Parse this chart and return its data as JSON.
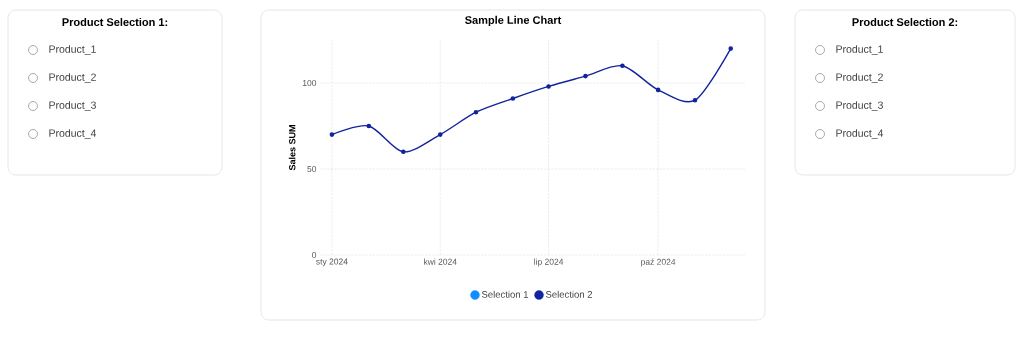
{
  "chart_data": [
    {
      "type": "other",
      "title": "Product Selection 1:",
      "categories": [
        "Product_1",
        "Product_2",
        "Product_3",
        "Product_4"
      ]
    },
    {
      "type": "line",
      "title": "Sample Line Chart",
      "ylabel": "Sales SUM",
      "x": [
        "2024-01-01",
        "2024-02-01",
        "2024-03-01",
        "2024-04-01",
        "2024-05-01",
        "2024-06-01",
        "2024-07-01",
        "2024-08-01",
        "2024-09-01",
        "2024-10-01",
        "2024-11-01",
        "2024-12-01"
      ],
      "series": [
        {
          "name": "Selection 1",
          "color": "#118dff",
          "values": [
            null,
            null,
            null,
            null,
            null,
            null,
            null,
            null,
            null,
            null,
            null,
            null
          ]
        },
        {
          "name": "Selection 2",
          "color": "#12239e",
          "values": [
            70,
            75,
            60,
            70,
            83,
            91,
            98,
            104,
            110,
            96,
            90,
            120
          ]
        }
      ],
      "xlim": [
        "2023-12-22",
        "2024-12-13"
      ],
      "xticks": [
        {
          "value": "2024-01-01",
          "label": "sty 2024"
        },
        {
          "value": "2024-04-01",
          "label": "kwi 2024"
        },
        {
          "value": "2024-07-01",
          "label": "lip 2024"
        },
        {
          "value": "2024-10-01",
          "label": "paź 2024"
        }
      ],
      "ylim": [
        0,
        125
      ],
      "yticks": [
        0,
        50,
        100
      ],
      "grid": true,
      "legend": "bottom",
      "marker": "circle",
      "line_style": "solid"
    },
    {
      "type": "other",
      "title": "Product Selection 2:",
      "categories": [
        "Product_1",
        "Product_2",
        "Product_3",
        "Product_4"
      ]
    }
  ]
}
